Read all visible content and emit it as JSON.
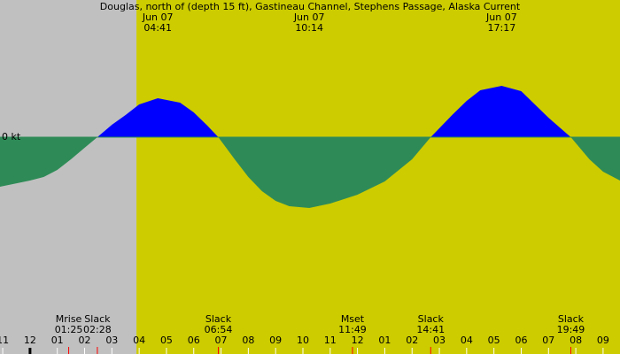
{
  "chart_data": {
    "type": "area",
    "title": "Douglas, north of (depth 15 ft), Gastineau Channel, Stephens Passage, Alaska Current",
    "x": [
      -1.1,
      0,
      0.5,
      1.0,
      1.5,
      2.0,
      2.467,
      3.0,
      3.5,
      4.0,
      4.683,
      5.5,
      6.0,
      6.5,
      6.9,
      7.5,
      8.0,
      8.5,
      9.0,
      9.5,
      10.233,
      11.0,
      12.0,
      13.0,
      14.0,
      14.683,
      15.5,
      16.0,
      16.5,
      17.283,
      18.0,
      18.5,
      19.0,
      19.817,
      20.5,
      21.0,
      21.62
    ],
    "values": [
      -1.12,
      -0.98,
      -0.9,
      -0.74,
      -0.5,
      -0.24,
      0,
      0.28,
      0.5,
      0.74,
      0.88,
      0.78,
      0.56,
      0.26,
      0,
      -0.5,
      -0.9,
      -1.22,
      -1.44,
      -1.56,
      -1.6,
      -1.5,
      -1.3,
      -1.0,
      -0.5,
      0,
      0.52,
      0.82,
      1.06,
      1.16,
      1.04,
      0.74,
      0.44,
      0,
      -0.5,
      -0.78,
      -0.98
    ],
    "flood_color": "#0000ff",
    "ebb_color": "#2e8b57",
    "day_color": "#cccc00",
    "night_color": "#c0c0c0",
    "daylight_start": 3.9,
    "xlim": [
      -1.1,
      21.62
    ],
    "ylim": [
      -4.9,
      3.1
    ],
    "yticks": [
      {
        "value": 0,
        "label": "0 kt"
      }
    ],
    "xticks": [
      {
        "value": -1,
        "label": "11"
      },
      {
        "value": 0,
        "label": "12"
      },
      {
        "value": 1,
        "label": "01"
      },
      {
        "value": 2,
        "label": "02"
      },
      {
        "value": 3,
        "label": "03"
      },
      {
        "value": 4,
        "label": "04"
      },
      {
        "value": 5,
        "label": "05"
      },
      {
        "value": 6,
        "label": "06"
      },
      {
        "value": 7,
        "label": "07"
      },
      {
        "value": 8,
        "label": "08"
      },
      {
        "value": 9,
        "label": "09"
      },
      {
        "value": 10,
        "label": "10"
      },
      {
        "value": 11,
        "label": "11"
      },
      {
        "value": 12,
        "label": "12"
      },
      {
        "value": 13,
        "label": "01"
      },
      {
        "value": 14,
        "label": "02"
      },
      {
        "value": 15,
        "label": "03"
      },
      {
        "value": 16,
        "label": "04"
      },
      {
        "value": 17,
        "label": "05"
      },
      {
        "value": 18,
        "label": "06"
      },
      {
        "value": 19,
        "label": "07"
      },
      {
        "value": 20,
        "label": "08"
      },
      {
        "value": 21,
        "label": "09"
      }
    ],
    "top_events": [
      {
        "date": "Jun 07",
        "time": "04:41",
        "x": 4.683
      },
      {
        "date": "Jun 07",
        "time": "10:14",
        "x": 10.233
      },
      {
        "date": "Jun 07",
        "time": "17:17",
        "x": 17.283
      }
    ],
    "bottom_events": [
      {
        "label": "Mrise",
        "time": "01:25",
        "x": 1.417
      },
      {
        "label": "Slack",
        "time": "02:28",
        "x": 2.467
      },
      {
        "label": "Slack",
        "time": "06:54",
        "x": 6.9
      },
      {
        "label": "Mset",
        "time": "11:49",
        "x": 11.817
      },
      {
        "label": "Slack",
        "time": "14:41",
        "x": 14.683
      },
      {
        "label": "Slack",
        "time": "19:49",
        "x": 19.817
      }
    ]
  }
}
